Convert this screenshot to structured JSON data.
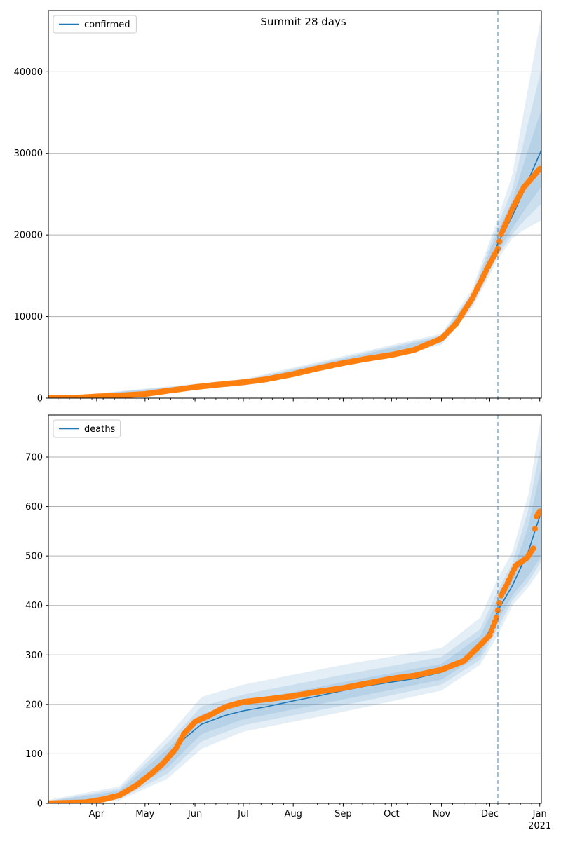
{
  "title": "Summit 28 days",
  "colors": {
    "model_line": "#1f77b4",
    "observed": "#ff7f0e",
    "band": "#1f77b4",
    "grid": "#b0b0b0",
    "forecast_line": "#1f77b4"
  },
  "x_axis": {
    "month_labels": [
      {
        "date": "2020-04-01",
        "label": "Apr"
      },
      {
        "date": "2020-05-01",
        "label": "May"
      },
      {
        "date": "2020-06-01",
        "label": "Jun"
      },
      {
        "date": "2020-07-01",
        "label": "Jul"
      },
      {
        "date": "2020-08-01",
        "label": "Aug"
      },
      {
        "date": "2020-09-01",
        "label": "Sep"
      },
      {
        "date": "2020-10-01",
        "label": "Oct"
      },
      {
        "date": "2020-11-01",
        "label": "Nov"
      },
      {
        "date": "2020-12-01",
        "label": "Dec"
      },
      {
        "date": "2021-01-01",
        "label": "Jan"
      }
    ],
    "year_label": "2021",
    "range": [
      "2020-03-02",
      "2021-01-02"
    ]
  },
  "chart_data": [
    {
      "type": "line",
      "title": "Summit 28 days",
      "legend": {
        "label": "confirmed",
        "placement": "upper-left"
      },
      "ylim": [
        0,
        47500
      ],
      "yticks": [
        0,
        10000,
        20000,
        30000,
        40000
      ],
      "grid": "y",
      "forecast_start": "2020-12-06",
      "model": [
        [
          "2020-03-02",
          0
        ],
        [
          "2020-03-20",
          30
        ],
        [
          "2020-04-01",
          150
        ],
        [
          "2020-04-15",
          300
        ],
        [
          "2020-05-01",
          550
        ],
        [
          "2020-05-15",
          900
        ],
        [
          "2020-06-01",
          1350
        ],
        [
          "2020-06-15",
          1650
        ],
        [
          "2020-07-01",
          1900
        ],
        [
          "2020-07-15",
          2250
        ],
        [
          "2020-08-01",
          2900
        ],
        [
          "2020-08-15",
          3500
        ],
        [
          "2020-09-01",
          4200
        ],
        [
          "2020-09-15",
          4700
        ],
        [
          "2020-10-01",
          5250
        ],
        [
          "2020-10-15",
          5900
        ],
        [
          "2020-11-01",
          7200
        ],
        [
          "2020-11-10",
          8900
        ],
        [
          "2020-11-20",
          12000
        ],
        [
          "2020-12-01",
          16500
        ],
        [
          "2020-12-06",
          19000
        ],
        [
          "2020-12-15",
          22300
        ],
        [
          "2020-12-22",
          25400
        ],
        [
          "2021-01-02",
          30400
        ]
      ],
      "bands": [
        [
          [
            "2020-03-02",
            0,
            0
          ],
          [
            "2020-07-01",
            1750,
            2050
          ],
          [
            "2020-11-01",
            6900,
            7500
          ],
          [
            "2020-11-20",
            11600,
            12500
          ],
          [
            "2020-12-06",
            18000,
            20500
          ],
          [
            "2020-12-15",
            20800,
            24200
          ],
          [
            "2020-12-22",
            22900,
            28700
          ],
          [
            "2021-01-02",
            25900,
            35400
          ]
        ],
        [
          [
            "2020-03-02",
            0,
            0
          ],
          [
            "2020-07-01",
            1650,
            2200
          ],
          [
            "2020-11-01",
            6700,
            7700
          ],
          [
            "2020-11-20",
            11300,
            12900
          ],
          [
            "2020-12-06",
            17500,
            21200
          ],
          [
            "2020-12-15",
            20100,
            25600
          ],
          [
            "2020-12-22",
            21700,
            31400
          ],
          [
            "2021-01-02",
            23800,
            40400
          ]
        ],
        [
          [
            "2020-03-02",
            0,
            0
          ],
          [
            "2020-07-01",
            1500,
            2350
          ],
          [
            "2020-11-01",
            6500,
            7900
          ],
          [
            "2020-11-20",
            11000,
            13300
          ],
          [
            "2020-12-06",
            17000,
            22000
          ],
          [
            "2020-12-15",
            19600,
            27400
          ],
          [
            "2020-12-22",
            20600,
            35000
          ],
          [
            "2021-01-02",
            21800,
            46900
          ]
        ]
      ],
      "observed": [
        [
          "2020-03-02",
          20
        ],
        [
          "2020-03-20",
          60
        ],
        [
          "2020-04-01",
          200
        ],
        [
          "2020-04-15",
          320
        ],
        [
          "2020-05-01",
          500
        ],
        [
          "2020-05-15",
          900
        ],
        [
          "2020-06-01",
          1350
        ],
        [
          "2020-06-15",
          1650
        ],
        [
          "2020-07-01",
          1950
        ],
        [
          "2020-07-15",
          2300
        ],
        [
          "2020-08-01",
          2950
        ],
        [
          "2020-08-15",
          3600
        ],
        [
          "2020-09-01",
          4300
        ],
        [
          "2020-09-15",
          4800
        ],
        [
          "2020-10-01",
          5300
        ],
        [
          "2020-10-15",
          5900
        ],
        [
          "2020-11-01",
          7300
        ],
        [
          "2020-11-10",
          9100
        ],
        [
          "2020-11-20",
          12200
        ],
        [
          "2020-12-01",
          16500
        ],
        [
          "2020-12-06",
          18300
        ],
        [
          "2020-12-08",
          20100
        ],
        [
          "2020-12-15",
          23200
        ],
        [
          "2020-12-22",
          25800
        ],
        [
          "2021-01-01",
          28100
        ]
      ]
    },
    {
      "type": "line",
      "legend": {
        "label": "deaths",
        "placement": "upper-left"
      },
      "ylim": [
        0,
        785
      ],
      "yticks": [
        0,
        100,
        200,
        300,
        400,
        500,
        600,
        700
      ],
      "grid": "y",
      "forecast_start": "2020-12-06",
      "model": [
        [
          "2020-03-02",
          0
        ],
        [
          "2020-03-25",
          2
        ],
        [
          "2020-04-05",
          8
        ],
        [
          "2020-04-15",
          18
        ],
        [
          "2020-04-25",
          35
        ],
        [
          "2020-05-05",
          60
        ],
        [
          "2020-05-15",
          90
        ],
        [
          "2020-05-25",
          130
        ],
        [
          "2020-06-05",
          160
        ],
        [
          "2020-06-20",
          178
        ],
        [
          "2020-07-01",
          187
        ],
        [
          "2020-07-15",
          195
        ],
        [
          "2020-08-01",
          207
        ],
        [
          "2020-08-15",
          216
        ],
        [
          "2020-09-01",
          228
        ],
        [
          "2020-09-15",
          237
        ],
        [
          "2020-10-01",
          245
        ],
        [
          "2020-10-15",
          252
        ],
        [
          "2020-11-01",
          265
        ],
        [
          "2020-11-15",
          285
        ],
        [
          "2020-11-25",
          318
        ],
        [
          "2020-12-01",
          350
        ],
        [
          "2020-12-06",
          390
        ],
        [
          "2020-12-15",
          440
        ],
        [
          "2020-12-25",
          510
        ],
        [
          "2021-01-02",
          590
        ]
      ],
      "bands": [
        [
          [
            "2020-03-02",
            0,
            4
          ],
          [
            "2020-04-15",
            12,
            25
          ],
          [
            "2020-05-15",
            72,
            110
          ],
          [
            "2020-06-05",
            140,
            180
          ],
          [
            "2020-07-01",
            170,
            205
          ],
          [
            "2020-09-01",
            210,
            245
          ],
          [
            "2020-11-01",
            250,
            282
          ],
          [
            "2020-11-25",
            300,
            338
          ],
          [
            "2020-12-06",
            370,
            412
          ],
          [
            "2020-12-15",
            420,
            464
          ],
          [
            "2020-12-25",
            460,
            562
          ],
          [
            "2021-01-02",
            500,
            680
          ]
        ],
        [
          [
            "2020-03-02",
            0,
            5
          ],
          [
            "2020-04-15",
            9,
            29
          ],
          [
            "2020-05-15",
            60,
            122
          ],
          [
            "2020-06-05",
            125,
            196
          ],
          [
            "2020-07-01",
            158,
            220
          ],
          [
            "2020-09-01",
            198,
            260
          ],
          [
            "2020-11-01",
            240,
            296
          ],
          [
            "2020-11-25",
            290,
            352
          ],
          [
            "2020-12-06",
            355,
            430
          ],
          [
            "2020-12-15",
            410,
            485
          ],
          [
            "2020-12-25",
            448,
            594
          ],
          [
            "2021-01-02",
            490,
            730
          ]
        ],
        [
          [
            "2020-03-02",
            0,
            7
          ],
          [
            "2020-04-15",
            6,
            34
          ],
          [
            "2020-05-15",
            50,
            135
          ],
          [
            "2020-06-05",
            110,
            215
          ],
          [
            "2020-07-01",
            145,
            240
          ],
          [
            "2020-09-01",
            185,
            280
          ],
          [
            "2020-11-01",
            228,
            314
          ],
          [
            "2020-11-25",
            280,
            375
          ],
          [
            "2020-12-06",
            340,
            455
          ],
          [
            "2020-12-15",
            400,
            508
          ],
          [
            "2020-12-25",
            437,
            625
          ],
          [
            "2021-01-02",
            475,
            785
          ]
        ]
      ],
      "observed": [
        [
          "2020-03-02",
          0
        ],
        [
          "2020-03-25",
          2
        ],
        [
          "2020-04-05",
          8
        ],
        [
          "2020-04-15",
          16
        ],
        [
          "2020-04-25",
          35
        ],
        [
          "2020-05-05",
          60
        ],
        [
          "2020-05-12",
          80
        ],
        [
          "2020-05-20",
          110
        ],
        [
          "2020-05-25",
          140
        ],
        [
          "2020-06-01",
          165
        ],
        [
          "2020-06-10",
          178
        ],
        [
          "2020-06-20",
          195
        ],
        [
          "2020-07-01",
          205
        ],
        [
          "2020-07-15",
          210
        ],
        [
          "2020-08-01",
          217
        ],
        [
          "2020-08-15",
          225
        ],
        [
          "2020-09-01",
          233
        ],
        [
          "2020-09-15",
          242
        ],
        [
          "2020-10-01",
          252
        ],
        [
          "2020-10-15",
          258
        ],
        [
          "2020-11-01",
          270
        ],
        [
          "2020-11-15",
          288
        ],
        [
          "2020-11-25",
          320
        ],
        [
          "2020-12-01",
          340
        ],
        [
          "2020-12-05",
          375
        ],
        [
          "2020-12-08",
          420
        ],
        [
          "2020-12-12",
          445
        ],
        [
          "2020-12-17",
          480
        ],
        [
          "2020-12-24",
          496
        ],
        [
          "2020-12-28",
          515
        ],
        [
          "2020-12-29",
          555
        ],
        [
          "2020-12-30",
          580
        ],
        [
          "2021-01-01",
          590
        ]
      ]
    }
  ]
}
